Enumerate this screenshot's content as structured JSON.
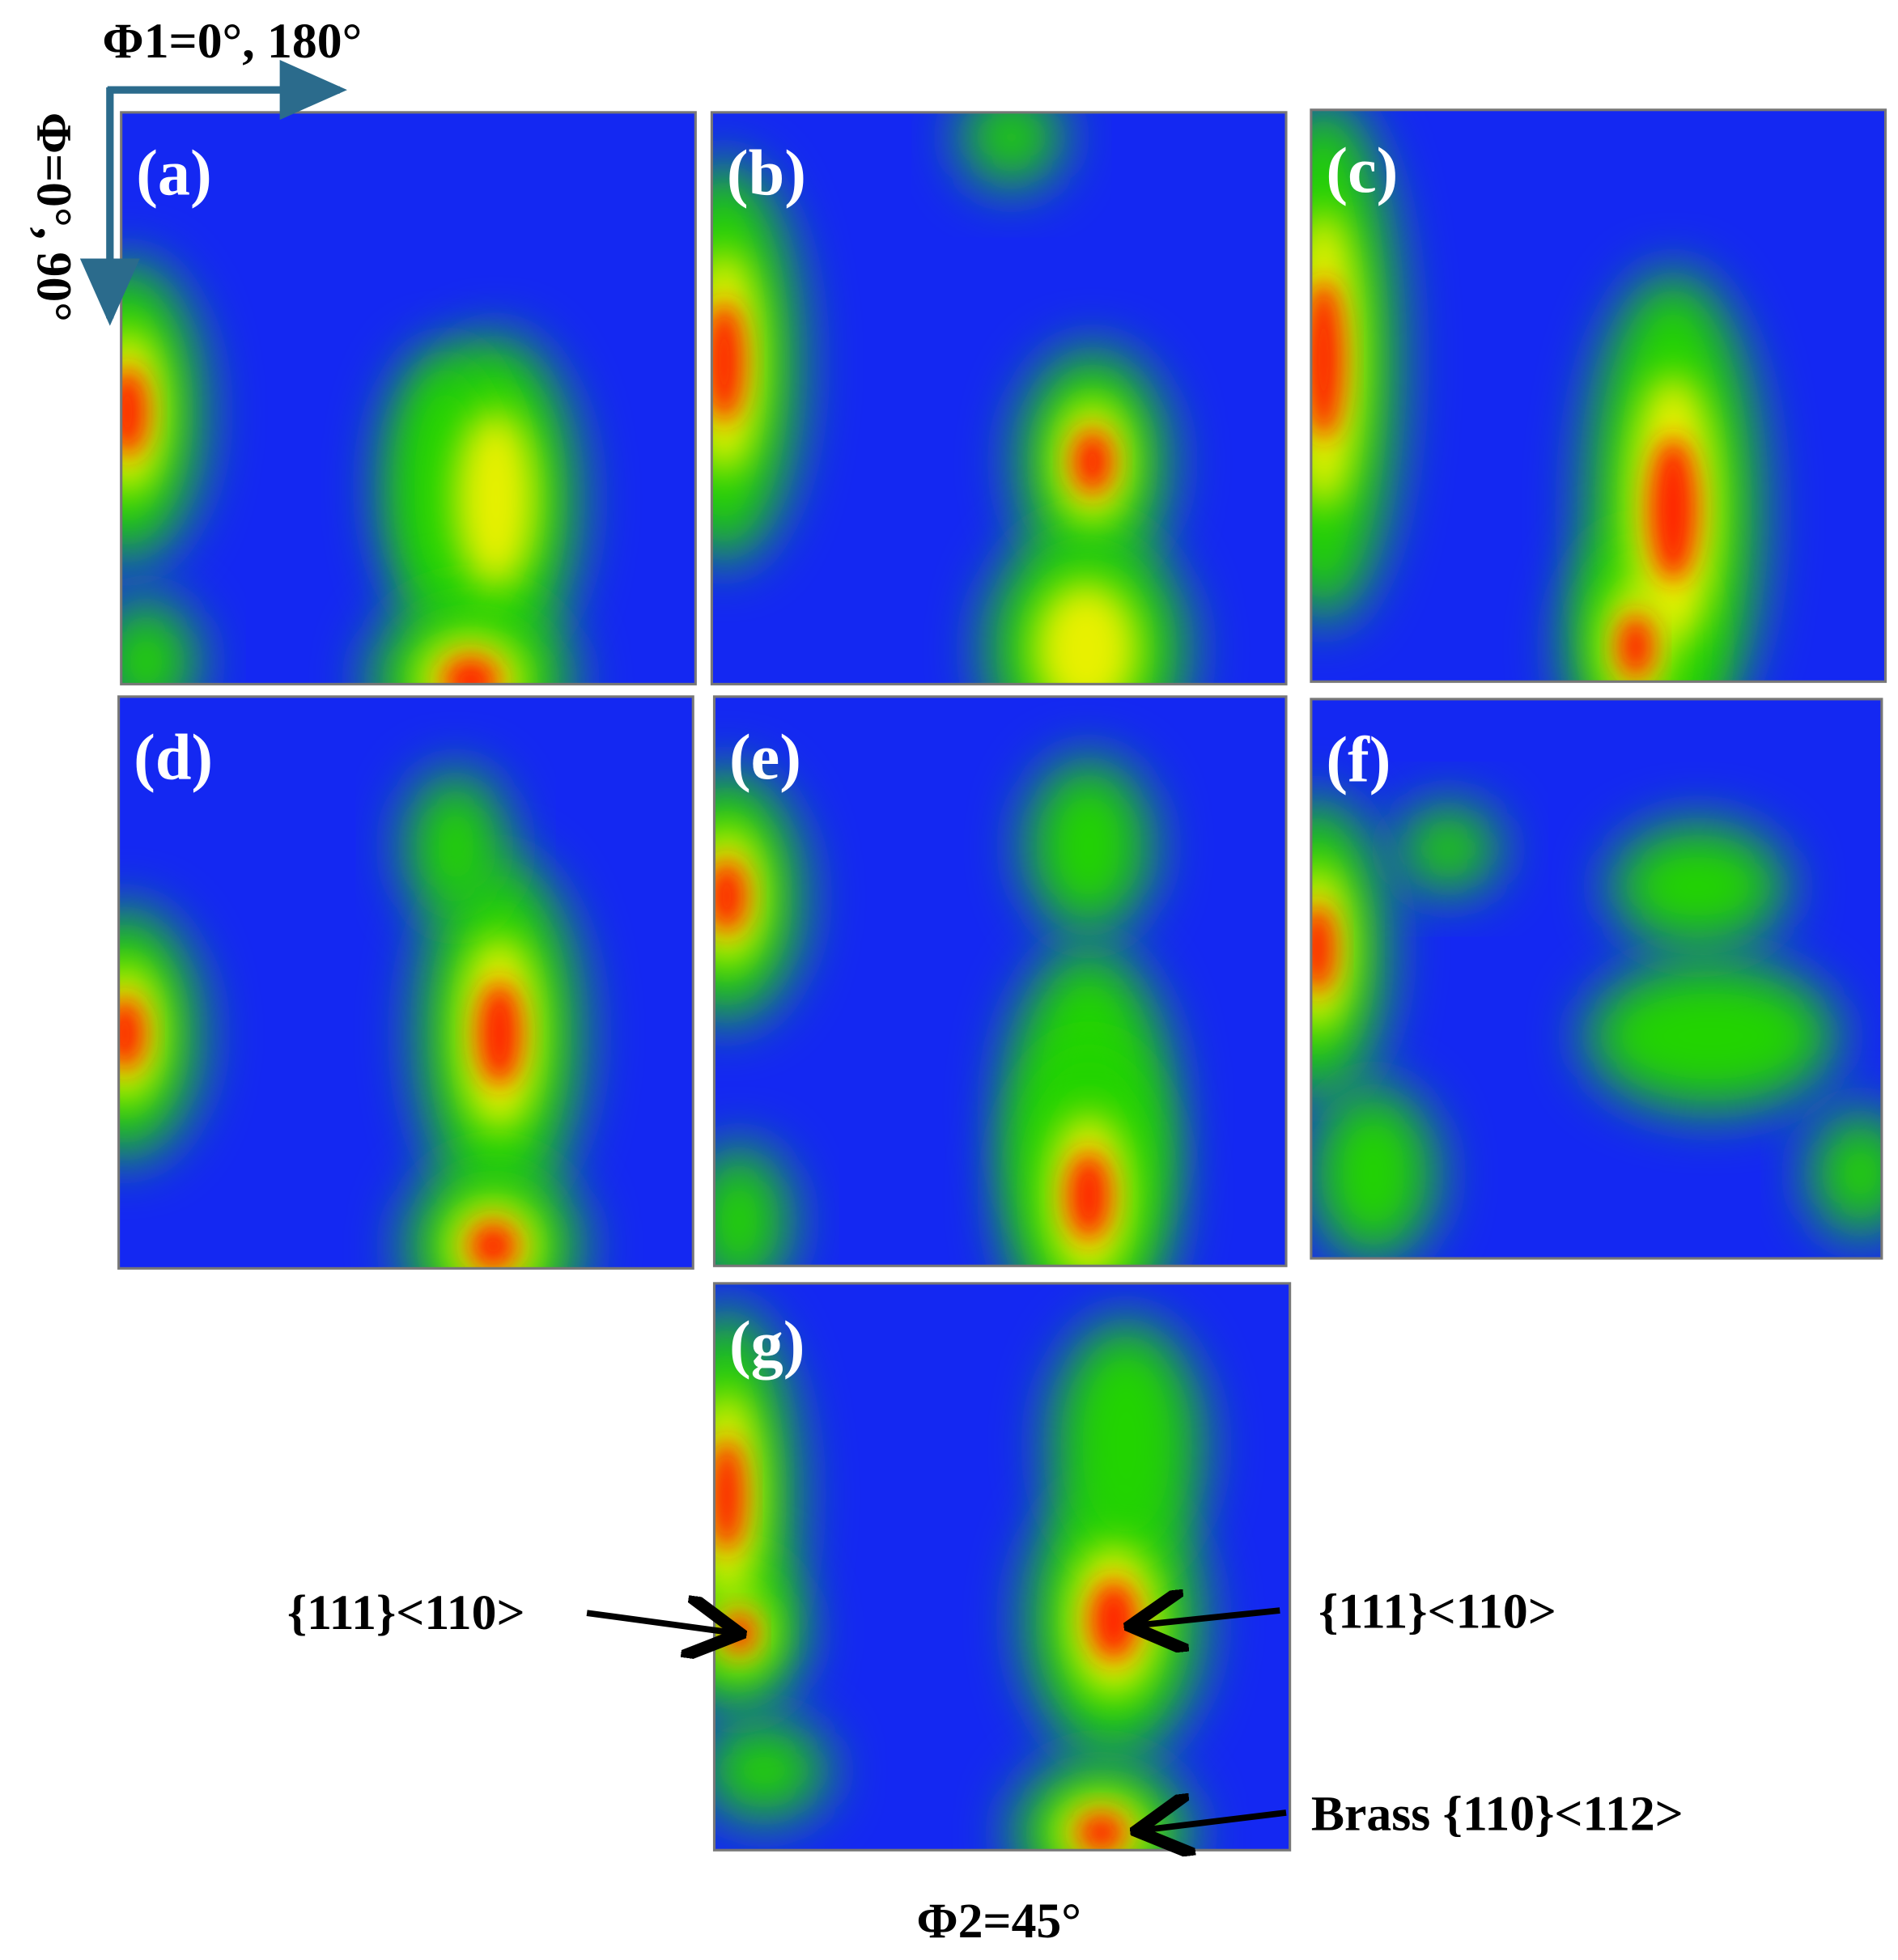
{
  "header": {
    "phi1_label": "Φ1=0°, 180°",
    "phi_label": "Φ=0°, 90°",
    "phi2_label": "Φ2=45°"
  },
  "panels": [
    {
      "label": "(a)"
    },
    {
      "label": "(b)"
    },
    {
      "label": "(c)"
    },
    {
      "label": "(d)"
    },
    {
      "label": "(e)"
    },
    {
      "label": "(f)"
    },
    {
      "label": "(g)"
    }
  ],
  "annotations": [
    {
      "text": "{111}<110>"
    },
    {
      "text": "{111}<110>"
    },
    {
      "text": "Brass {110}<112>"
    }
  ]
}
